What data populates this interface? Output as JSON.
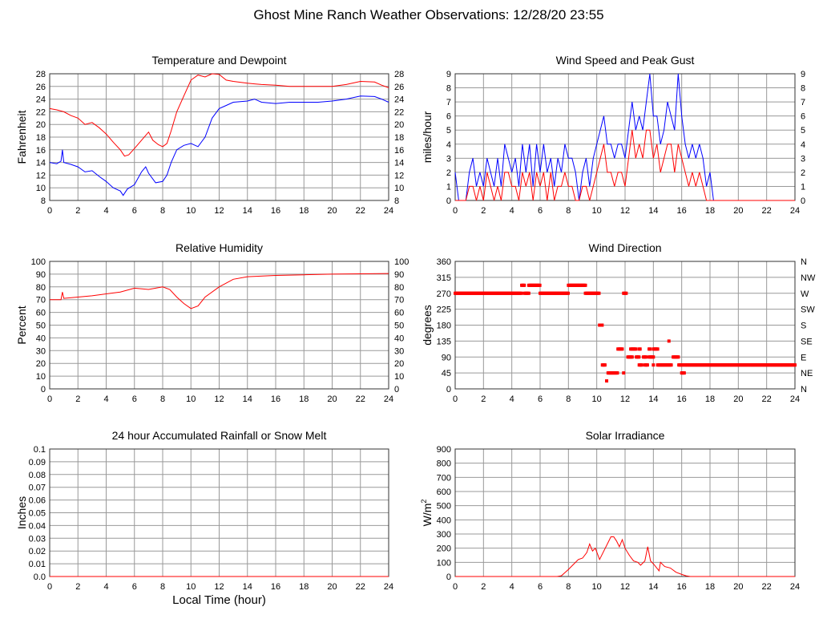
{
  "title": "Ghost Mine Ranch Weather Observations: 12/28/20 23:55",
  "xlabel": "Local Time (hour)",
  "colors": {
    "red": "#ff0000",
    "blue": "#0000ff",
    "grid": "#999999"
  },
  "chart_data": [
    {
      "id": "temp",
      "type": "line",
      "title": "Temperature and Dewpoint",
      "ylabel": "Fahrenheit",
      "xlim": [
        0,
        24
      ],
      "xticks": [
        0,
        2,
        4,
        6,
        8,
        10,
        12,
        14,
        16,
        18,
        20,
        22,
        24
      ],
      "ylim": [
        8,
        28
      ],
      "yticks": [
        8,
        10,
        12,
        14,
        16,
        18,
        20,
        22,
        24,
        26,
        28
      ],
      "right_ticks": [
        "8",
        "10",
        "12",
        "14",
        "16",
        "18",
        "20",
        "22",
        "24",
        "26",
        "28"
      ],
      "series": [
        {
          "name": "Temperature",
          "color": "#ff0000",
          "x": [
            0,
            0.5,
            1,
            1.5,
            2,
            2.5,
            3,
            3.5,
            4,
            4.5,
            5,
            5.3,
            5.6,
            6,
            6.5,
            7,
            7.3,
            7.7,
            8,
            8.3,
            8.6,
            9,
            9.5,
            10,
            10.5,
            11,
            11.5,
            12,
            12.5,
            13,
            14,
            14.5,
            15,
            16,
            17,
            18,
            19,
            20,
            21,
            22,
            23,
            23.5,
            24
          ],
          "y": [
            22.5,
            22.3,
            22,
            21.4,
            21,
            20,
            20.3,
            19.5,
            18.5,
            17.2,
            16,
            15,
            15.2,
            16.2,
            17.5,
            18.8,
            17.5,
            16.8,
            16.5,
            17,
            19,
            22,
            24.5,
            27,
            27.8,
            27.5,
            28,
            27.9,
            27,
            26.8,
            26.5,
            26.4,
            26.3,
            26.2,
            26,
            26,
            26,
            26,
            26.3,
            26.8,
            26.7,
            26.2,
            25.8
          ]
        },
        {
          "name": "Dewpoint",
          "color": "#0000ff",
          "x": [
            0,
            0.5,
            0.8,
            0.9,
            1,
            1.5,
            2,
            2.5,
            3,
            3.5,
            4,
            4.5,
            5,
            5.2,
            5.5,
            6,
            6.5,
            6.8,
            7,
            7.5,
            8,
            8.3,
            8.6,
            9,
            9.5,
            10,
            10.5,
            11,
            11.5,
            12,
            12.5,
            13,
            14,
            14.5,
            15,
            16,
            17,
            18,
            19,
            20,
            21,
            22,
            23,
            23.5,
            24
          ],
          "y": [
            14,
            13.8,
            14.2,
            16,
            14,
            13.7,
            13.3,
            12.5,
            12.7,
            11.8,
            11,
            10,
            9.5,
            8.8,
            9.8,
            10.5,
            12.5,
            13.3,
            12.3,
            10.8,
            11,
            12,
            14,
            16,
            16.7,
            17,
            16.5,
            18,
            21,
            22.5,
            23,
            23.5,
            23.7,
            24,
            23.5,
            23.3,
            23.5,
            23.5,
            23.5,
            23.7,
            24,
            24.5,
            24.4,
            24,
            23.5
          ]
        }
      ]
    },
    {
      "id": "wind",
      "type": "line",
      "title": "Wind Speed and Peak Gust",
      "ylabel": "miles/hour",
      "xlim": [
        0,
        24
      ],
      "xticks": [
        0,
        2,
        4,
        6,
        8,
        10,
        12,
        14,
        16,
        18,
        20,
        22,
        24
      ],
      "ylim": [
        0,
        9
      ],
      "yticks": [
        0,
        1,
        2,
        3,
        4,
        5,
        6,
        7,
        8,
        9
      ],
      "right_ticks": [
        "0",
        "1",
        "2",
        "3",
        "4",
        "5",
        "6",
        "7",
        "8",
        "9"
      ],
      "series": [
        {
          "name": "Peak Gust",
          "color": "#0000ff",
          "step": 0.25,
          "y": [
            2,
            0,
            0,
            0,
            2,
            3,
            1,
            2,
            1,
            3,
            2,
            1,
            3,
            1,
            4,
            3,
            2,
            3,
            1,
            4,
            2,
            4,
            1,
            4,
            2,
            4,
            2,
            3,
            1,
            3,
            2,
            4,
            3,
            3,
            2,
            0,
            2,
            3,
            1,
            3,
            4,
            5,
            6,
            4,
            4,
            3,
            4,
            4,
            3,
            5,
            7,
            5,
            6,
            5,
            7,
            9,
            6,
            6,
            4,
            5,
            7,
            6,
            5,
            9,
            6,
            4,
            3,
            4,
            3,
            4,
            3,
            1,
            2,
            0,
            0,
            0,
            0,
            0,
            0,
            0,
            0,
            0,
            0,
            0,
            0,
            0,
            0,
            0,
            0,
            0,
            0,
            0,
            0,
            0,
            0,
            0,
            0
          ]
        },
        {
          "name": "Wind Speed",
          "color": "#ff0000",
          "step": 0.25,
          "y": [
            0,
            0,
            0,
            0,
            1,
            1,
            0,
            1,
            0,
            2,
            1,
            0,
            1,
            0,
            2,
            2,
            1,
            1,
            0,
            2,
            1,
            2,
            0,
            2,
            1,
            2,
            0,
            2,
            0,
            1,
            1,
            2,
            1,
            1,
            0,
            0,
            1,
            1,
            0,
            1,
            2,
            3,
            4,
            2,
            2,
            1,
            2,
            2,
            1,
            3,
            5,
            3,
            4,
            3,
            5,
            5,
            3,
            4,
            2,
            3,
            4,
            4,
            2,
            4,
            3,
            2,
            1,
            2,
            1,
            2,
            1,
            0,
            0,
            0,
            0,
            0,
            0,
            0,
            0,
            0,
            0,
            0,
            0,
            0,
            0,
            0,
            0,
            0,
            0,
            0,
            0,
            0,
            0,
            0,
            0,
            0,
            0
          ]
        }
      ]
    },
    {
      "id": "rh",
      "type": "line",
      "title": "Relative Humidity",
      "ylabel": "Percent",
      "xlim": [
        0,
        24
      ],
      "xticks": [
        0,
        2,
        4,
        6,
        8,
        10,
        12,
        14,
        16,
        18,
        20,
        22,
        24
      ],
      "ylim": [
        0,
        100
      ],
      "yticks": [
        0,
        10,
        20,
        30,
        40,
        50,
        60,
        70,
        80,
        90,
        100
      ],
      "right_ticks": [
        "0",
        "10",
        "20",
        "30",
        "40",
        "50",
        "60",
        "70",
        "80",
        "90",
        "100"
      ],
      "series": [
        {
          "name": "Relative Humidity",
          "color": "#ff0000",
          "x": [
            0,
            0.8,
            0.9,
            1,
            2,
            3,
            4,
            5,
            6,
            7,
            8,
            8.5,
            9,
            9.5,
            10,
            10.5,
            11,
            12,
            13,
            14,
            16,
            18,
            20,
            24
          ],
          "y": [
            70,
            70,
            76,
            71,
            72,
            73,
            74.5,
            76,
            79,
            78,
            80,
            78,
            72,
            67,
            63,
            65,
            72,
            80,
            86,
            88,
            89,
            89.5,
            90,
            90.5
          ]
        }
      ]
    },
    {
      "id": "dir",
      "type": "scatter",
      "title": "Wind Direction",
      "ylabel": "degrees",
      "xlim": [
        0,
        24
      ],
      "xticks": [
        0,
        2,
        4,
        6,
        8,
        10,
        12,
        14,
        16,
        18,
        20,
        22,
        24
      ],
      "ylim": [
        0,
        360
      ],
      "yticks": [
        0,
        45,
        90,
        135,
        180,
        225,
        270,
        315,
        360
      ],
      "right_ticks": [
        "N",
        "NE",
        "E",
        "SE",
        "S",
        "SW",
        "W",
        "NW",
        "N"
      ],
      "segments": [
        [
          0,
          4.7,
          270
        ],
        [
          4.7,
          4.9,
          292.5
        ],
        [
          4.9,
          5.2,
          270
        ],
        [
          5.2,
          6,
          292.5
        ],
        [
          6,
          8,
          270
        ],
        [
          8,
          9.2,
          292.5
        ],
        [
          9.2,
          10.2,
          270
        ],
        [
          10.2,
          10.4,
          180
        ],
        [
          10.4,
          10.6,
          67.5
        ],
        [
          10.7,
          10.75,
          22.5
        ],
        [
          10.8,
          11.5,
          45
        ],
        [
          11.5,
          11.8,
          112.5
        ],
        [
          11.9,
          11.95,
          45
        ],
        [
          11.9,
          12.1,
          270
        ],
        [
          12.2,
          12.5,
          90
        ],
        [
          12.4,
          12.8,
          112.5
        ],
        [
          12.8,
          13.0,
          90
        ],
        [
          13.0,
          13.1,
          112.5
        ],
        [
          13.0,
          13.2,
          67.5
        ],
        [
          13.3,
          13.5,
          90
        ],
        [
          13.4,
          13.6,
          67.5
        ],
        [
          13.7,
          14.0,
          90
        ],
        [
          13.7,
          13.8,
          112.5
        ],
        [
          14.0,
          14.3,
          112.5
        ],
        [
          14.0,
          14.05,
          67.5
        ],
        [
          14.3,
          15.3,
          67.5
        ],
        [
          15.1,
          15.15,
          135
        ],
        [
          15.4,
          15.8,
          90
        ],
        [
          15.8,
          16.1,
          67.5
        ],
        [
          16.0,
          16.2,
          45
        ],
        [
          16.2,
          24,
          67.5
        ]
      ]
    },
    {
      "id": "rain",
      "type": "line",
      "title": "24 hour Accumulated Rainfall or Snow Melt",
      "ylabel": "Inches",
      "xlabel": "Local Time (hour)",
      "xlim": [
        0,
        24
      ],
      "xticks": [
        0,
        2,
        4,
        6,
        8,
        10,
        12,
        14,
        16,
        18,
        20,
        22,
        24
      ],
      "ylim": [
        0,
        0.1
      ],
      "yticks": [
        0,
        0.01,
        0.02,
        0.03,
        0.04,
        0.05,
        0.06,
        0.07,
        0.08,
        0.09,
        0.1
      ],
      "ytick_labels": [
        "0.0",
        "0.01",
        "0.02",
        "0.03",
        "0.04",
        "0.05",
        "0.06",
        "0.07",
        "0.08",
        "0.09",
        "0.1"
      ],
      "series": [
        {
          "name": "Rainfall",
          "color": "#ff0000",
          "x": [
            0,
            24
          ],
          "y": [
            0,
            0
          ]
        }
      ]
    },
    {
      "id": "solar",
      "type": "line",
      "title": "Solar Irradiance",
      "ylabel": "W/m",
      "ylabel_sup": "2",
      "xlim": [
        0,
        24
      ],
      "xticks": [
        0,
        2,
        4,
        6,
        8,
        10,
        12,
        14,
        16,
        18,
        20,
        22,
        24
      ],
      "ylim": [
        0,
        900
      ],
      "yticks": [
        0,
        100,
        200,
        300,
        400,
        500,
        600,
        700,
        800,
        900
      ],
      "series": [
        {
          "name": "Solar Irradiance",
          "color": "#ff0000",
          "x": [
            0,
            7.2,
            7.5,
            8,
            8.3,
            8.7,
            9,
            9.3,
            9.5,
            9.7,
            9.9,
            10.2,
            10.5,
            10.8,
            11,
            11.2,
            11.4,
            11.6,
            11.8,
            12,
            12.3,
            12.6,
            12.9,
            13.1,
            13.4,
            13.6,
            13.8,
            14,
            14.4,
            14.5,
            14.8,
            15.2,
            15.6,
            16,
            16.3,
            16.6,
            24
          ],
          "y": [
            0,
            0,
            5,
            50,
            80,
            120,
            130,
            170,
            230,
            180,
            200,
            120,
            180,
            240,
            280,
            280,
            250,
            210,
            260,
            200,
            150,
            110,
            100,
            80,
            110,
            210,
            110,
            90,
            40,
            100,
            70,
            60,
            30,
            15,
            5,
            0,
            0
          ]
        }
      ]
    }
  ]
}
